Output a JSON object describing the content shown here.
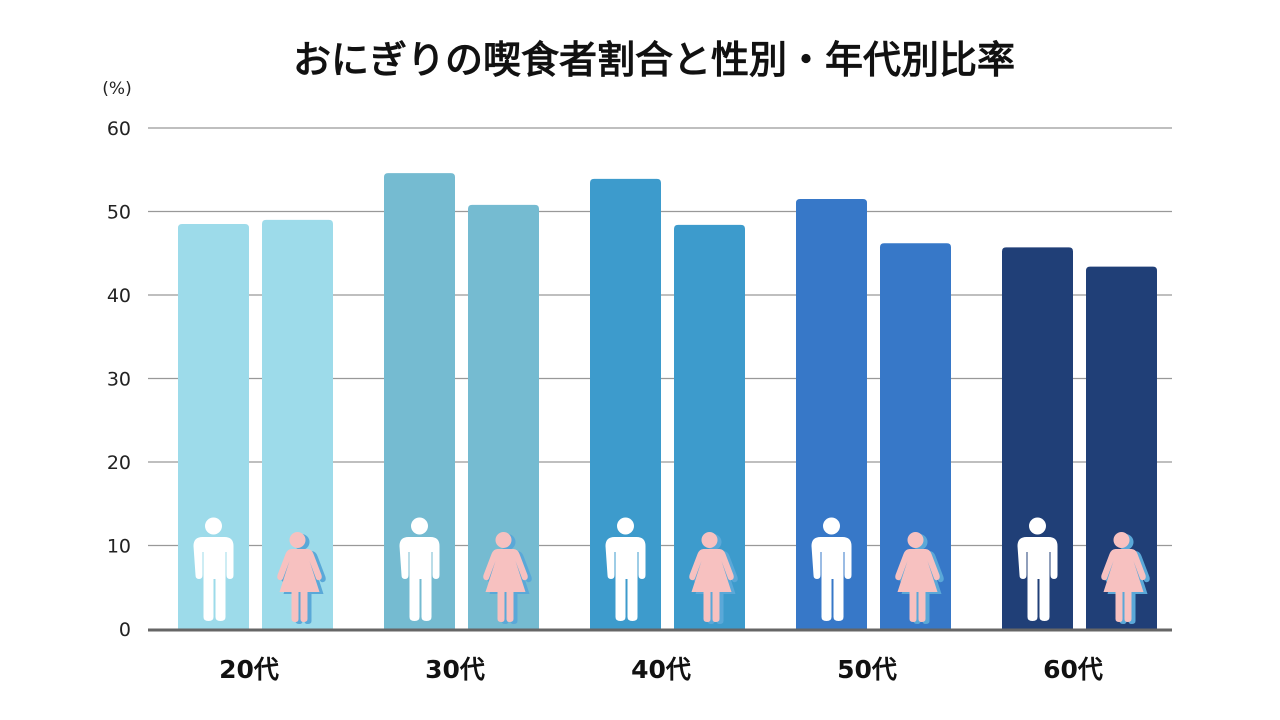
{
  "chart_data": {
    "type": "bar",
    "title": "おにぎりの喫食者割合と性別・年代別比率",
    "ylabel": "(%)",
    "xlabel": "",
    "ylim": [
      0,
      60
    ],
    "yticks": [
      "0",
      "10",
      "20",
      "30",
      "40",
      "50",
      "60"
    ],
    "grid": true,
    "categories": [
      "20代",
      "30代",
      "40代",
      "50代",
      "60代"
    ],
    "series": [
      {
        "name": "男性",
        "icon": "male-icon",
        "values": [
          48.5,
          54.6,
          53.9,
          51.5,
          45.7
        ]
      },
      {
        "name": "女性",
        "icon": "female-icon",
        "values": [
          49.0,
          50.8,
          48.4,
          46.2,
          43.4
        ]
      }
    ],
    "category_colors": [
      "#9ddbea",
      "#75bbd1",
      "#3d9bcc",
      "#3778c8",
      "#203f77"
    ],
    "male_icon_color": "#ffffff",
    "female_icon_color": "#f7c1c0"
  }
}
